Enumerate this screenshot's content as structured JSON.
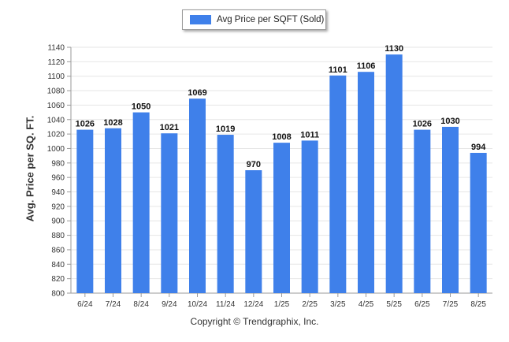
{
  "chart_data": {
    "type": "bar",
    "categories": [
      "6/24",
      "7/24",
      "8/24",
      "9/24",
      "10/24",
      "11/24",
      "12/24",
      "1/25",
      "2/25",
      "3/25",
      "4/25",
      "5/25",
      "6/25",
      "7/25",
      "8/25"
    ],
    "series": [
      {
        "name": "Avg Price per SQFT (Sold)",
        "values": [
          1026,
          1028,
          1050,
          1021,
          1069,
          1019,
          970,
          1008,
          1011,
          1101,
          1106,
          1130,
          1026,
          1030,
          994
        ],
        "color": "#3f80ea"
      }
    ],
    "data_labels": [
      "1026",
      "1028",
      "1050",
      "1021",
      "1069",
      "1019",
      "970",
      "1008",
      "1011",
      "1101",
      "1106",
      "1130",
      "1026",
      "1030",
      "994"
    ],
    "ylabel": "Avg. Price per SQ. FT.",
    "ylim": [
      800,
      1140
    ],
    "y_ticks": [
      "800",
      "820",
      "840",
      "860",
      "880",
      "900",
      "920",
      "940",
      "960",
      "980",
      "1000",
      "1020",
      "1040",
      "1060",
      "1080",
      "1100",
      "1120",
      "1140"
    ],
    "grid": true,
    "legend_position": "top-center"
  },
  "legend": {
    "label": "Avg Price per SQFT (Sold)",
    "color": "#3f80ea"
  },
  "footer": {
    "copyright": "Copyright © Trendgraphix, Inc."
  }
}
